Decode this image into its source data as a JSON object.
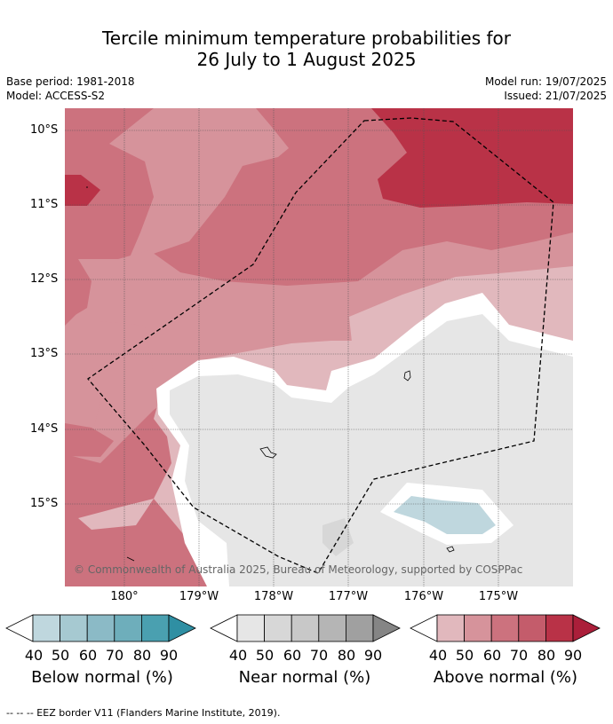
{
  "title_line1": "Tercile minimum temperature probabilities for",
  "title_line2": "26 July to 1 August 2025",
  "meta": {
    "base_period": "Base period: 1981-2018",
    "model": "Model: ACCESS-S2",
    "model_run": "Model run: 19/07/2025",
    "issued": "Issued: 21/07/2025"
  },
  "lat_labels": [
    "10°S",
    "11°S",
    "12°S",
    "13°S",
    "14°S",
    "15°S"
  ],
  "lon_labels": [
    "180°",
    "179°W",
    "178°W",
    "177°W",
    "176°W",
    "175°W"
  ],
  "copyright": "© Commonwealth of Australia 2025, Bureau of Meteorology, supported by COSPPac",
  "colorbars": [
    {
      "title": "Below normal (%)",
      "ticks": [
        "40",
        "50",
        "60",
        "70",
        "80",
        "90"
      ],
      "colors": [
        "#bfd7de",
        "#a6c9d1",
        "#8bbac6",
        "#6eaebb",
        "#4aa0b0",
        "#2f8fa3"
      ]
    },
    {
      "title": "Near normal (%)",
      "ticks": [
        "40",
        "50",
        "60",
        "70",
        "80",
        "90"
      ],
      "colors": [
        "#e6e6e6",
        "#d7d7d7",
        "#c8c8c8",
        "#b5b5b5",
        "#a0a0a0",
        "#858585"
      ]
    },
    {
      "title": "Above normal (%)",
      "ticks": [
        "40",
        "50",
        "60",
        "70",
        "80",
        "90"
      ],
      "colors": [
        "#e1b8bd",
        "#d6939b",
        "#cc727e",
        "#c45c6b",
        "#b93247",
        "#ab1f3a"
      ]
    }
  ],
  "footnote": "--  --  -- EEZ border V11 (Flanders Marine Institute, 2019)."
}
